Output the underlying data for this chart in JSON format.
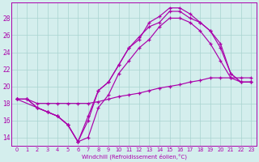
{
  "bg_color": "#d4eeed",
  "grid_color": "#a8d4d0",
  "line_color": "#aa00aa",
  "xlabel": "Windchill (Refroidissement éolien,°C)",
  "xlim": [
    -0.5,
    23.5
  ],
  "ylim": [
    13.0,
    29.8
  ],
  "yticks": [
    14,
    16,
    18,
    20,
    22,
    24,
    26,
    28
  ],
  "xticks": [
    0,
    1,
    2,
    3,
    4,
    5,
    6,
    7,
    8,
    9,
    10,
    11,
    12,
    13,
    14,
    15,
    16,
    17,
    18,
    19,
    20,
    21,
    22,
    23
  ],
  "curve1_x": [
    0,
    1,
    2,
    3,
    4,
    5,
    6,
    7,
    8,
    9,
    10,
    11,
    12,
    13,
    14,
    15,
    16,
    17,
    18,
    19,
    20,
    21,
    22,
    23
  ],
  "curve1_y": [
    18.5,
    18.5,
    17.5,
    17.0,
    16.5,
    15.5,
    13.5,
    16.0,
    19.5,
    20.5,
    22.5,
    24.5,
    25.5,
    27.5,
    28.2,
    29.2,
    29.2,
    28.5,
    27.5,
    26.5,
    25.0,
    21.5,
    20.5,
    20.5
  ],
  "curve2_x": [
    0,
    1,
    2,
    3,
    4,
    5,
    6,
    7,
    8,
    9,
    10,
    11,
    12,
    13,
    14,
    15,
    16,
    17,
    18,
    19,
    20,
    21,
    22,
    23
  ],
  "curve2_y": [
    18.5,
    18.5,
    17.5,
    17.0,
    16.5,
    15.5,
    13.5,
    14.0,
    17.5,
    19.0,
    21.5,
    23.0,
    24.5,
    25.5,
    27.0,
    28.0,
    28.0,
    27.5,
    26.5,
    25.0,
    23.0,
    21.0,
    20.5,
    20.5
  ],
  "curve3_x": [
    0,
    1,
    2,
    3,
    4,
    5,
    6,
    7,
    8,
    9,
    10,
    11,
    12,
    13,
    14,
    15,
    16,
    17,
    18,
    19,
    20,
    21,
    22,
    23
  ],
  "curve3_y": [
    18.5,
    18.5,
    18.0,
    18.0,
    18.0,
    18.0,
    18.0,
    18.0,
    18.2,
    18.5,
    18.8,
    19.0,
    19.2,
    19.5,
    19.8,
    20.0,
    20.2,
    20.5,
    20.7,
    21.0,
    21.0,
    21.0,
    21.0,
    21.0
  ],
  "curve4_x": [
    0,
    2,
    3,
    4,
    5,
    6,
    7,
    8,
    9,
    10,
    11,
    12,
    13,
    14,
    15,
    16,
    17,
    18,
    19,
    20,
    21,
    22,
    23
  ],
  "curve4_y": [
    18.5,
    17.5,
    17.0,
    16.5,
    15.5,
    13.5,
    16.5,
    19.5,
    20.5,
    22.5,
    24.5,
    25.8,
    27.0,
    27.5,
    28.8,
    28.8,
    28.0,
    27.5,
    26.5,
    24.5,
    21.5,
    20.5,
    20.5
  ]
}
